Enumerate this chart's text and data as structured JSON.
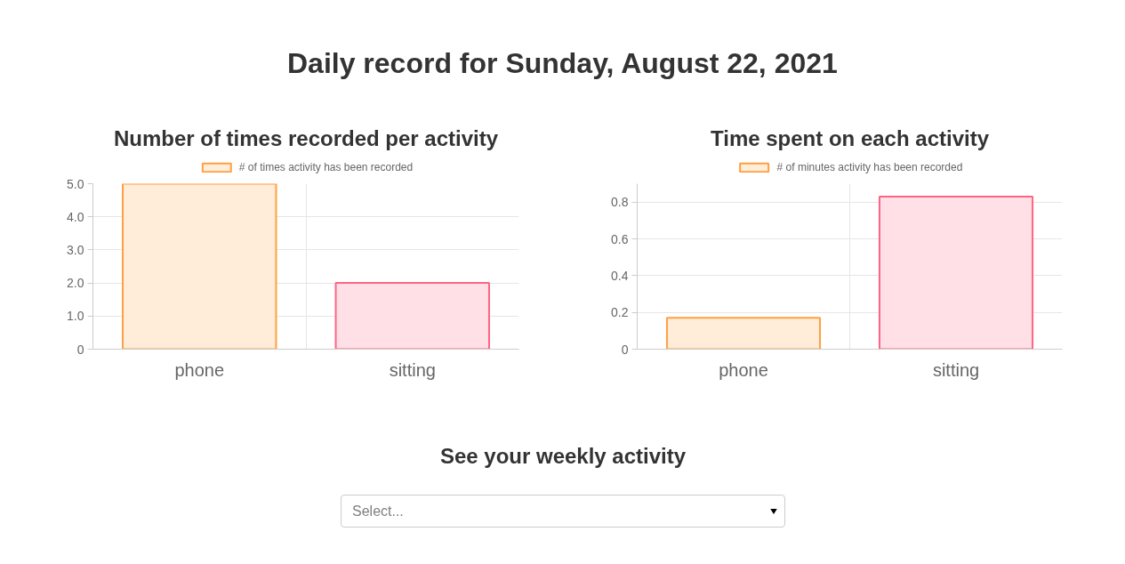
{
  "chart_data": [
    {
      "type": "other",
      "title": "Daily record for Sunday, August 22, 2021"
    },
    {
      "type": "bar",
      "title": "Number of times recorded per activity",
      "categories": [
        "phone",
        "sitting"
      ],
      "series": [
        {
          "name": "# of times activity has been recorded",
          "colors": [
            "#ffecd9",
            "#ffe0e6"
          ],
          "values": [
            5,
            2
          ]
        }
      ],
      "ylim": [
        0,
        5
      ],
      "yticks": [
        0,
        {
          "value": 1,
          "label": "1.0"
        },
        {
          "value": 2,
          "label": "2.0"
        },
        {
          "value": 3,
          "label": "3.0"
        },
        {
          "value": 4,
          "label": "4.0"
        },
        {
          "value": 5,
          "label": "5.0"
        }
      ],
      "grid": true,
      "legend": "top"
    },
    {
      "type": "bar",
      "title": "Time spent on each activity",
      "categories": [
        "phone",
        "sitting"
      ],
      "series": [
        {
          "name": "# of minutes activity has been recorded",
          "colors": [
            "#ffecd9",
            "#ffe0e6"
          ],
          "values": [
            0.17,
            0.83
          ]
        }
      ],
      "ylim": [
        0,
        0.9
      ],
      "yticks": [
        0,
        0.2,
        0.4,
        0.6,
        0.8
      ],
      "grid": true,
      "legend": "top"
    },
    {
      "type": "other",
      "title": "See your weekly activity",
      "annotations": [
        "Select..."
      ]
    }
  ]
}
